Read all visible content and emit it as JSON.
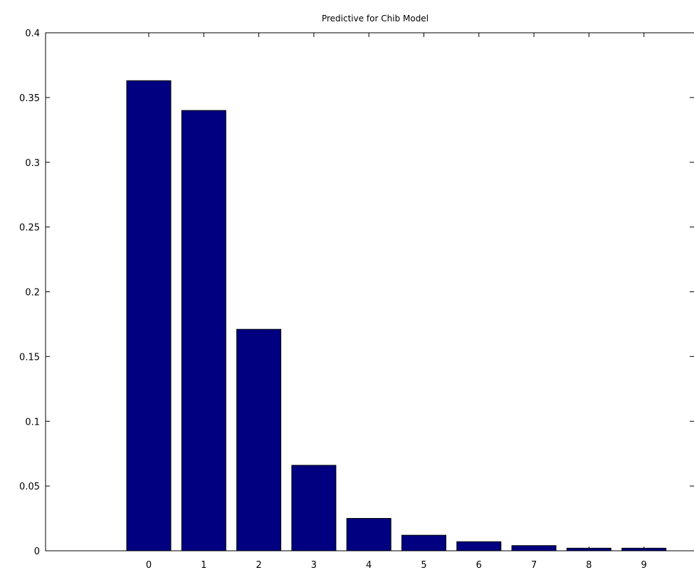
{
  "chart_data": {
    "type": "bar",
    "title": "Predictive for Chib Model",
    "xlabel": "",
    "ylabel": "",
    "categories": [
      "0",
      "1",
      "2",
      "3",
      "4",
      "5",
      "6",
      "7",
      "8",
      "9"
    ],
    "values": [
      0.363,
      0.34,
      0.171,
      0.066,
      0.025,
      0.012,
      0.007,
      0.004,
      0.002,
      0.002
    ],
    "xlim": [
      -2,
      10
    ],
    "ylim": [
      0,
      0.4
    ],
    "yticks": [
      "0",
      "0.05",
      "0.1",
      "0.15",
      "0.2",
      "0.25",
      "0.3",
      "0.35",
      "0.4"
    ],
    "grid": false,
    "legend": "none",
    "bar_color": "#000080"
  }
}
